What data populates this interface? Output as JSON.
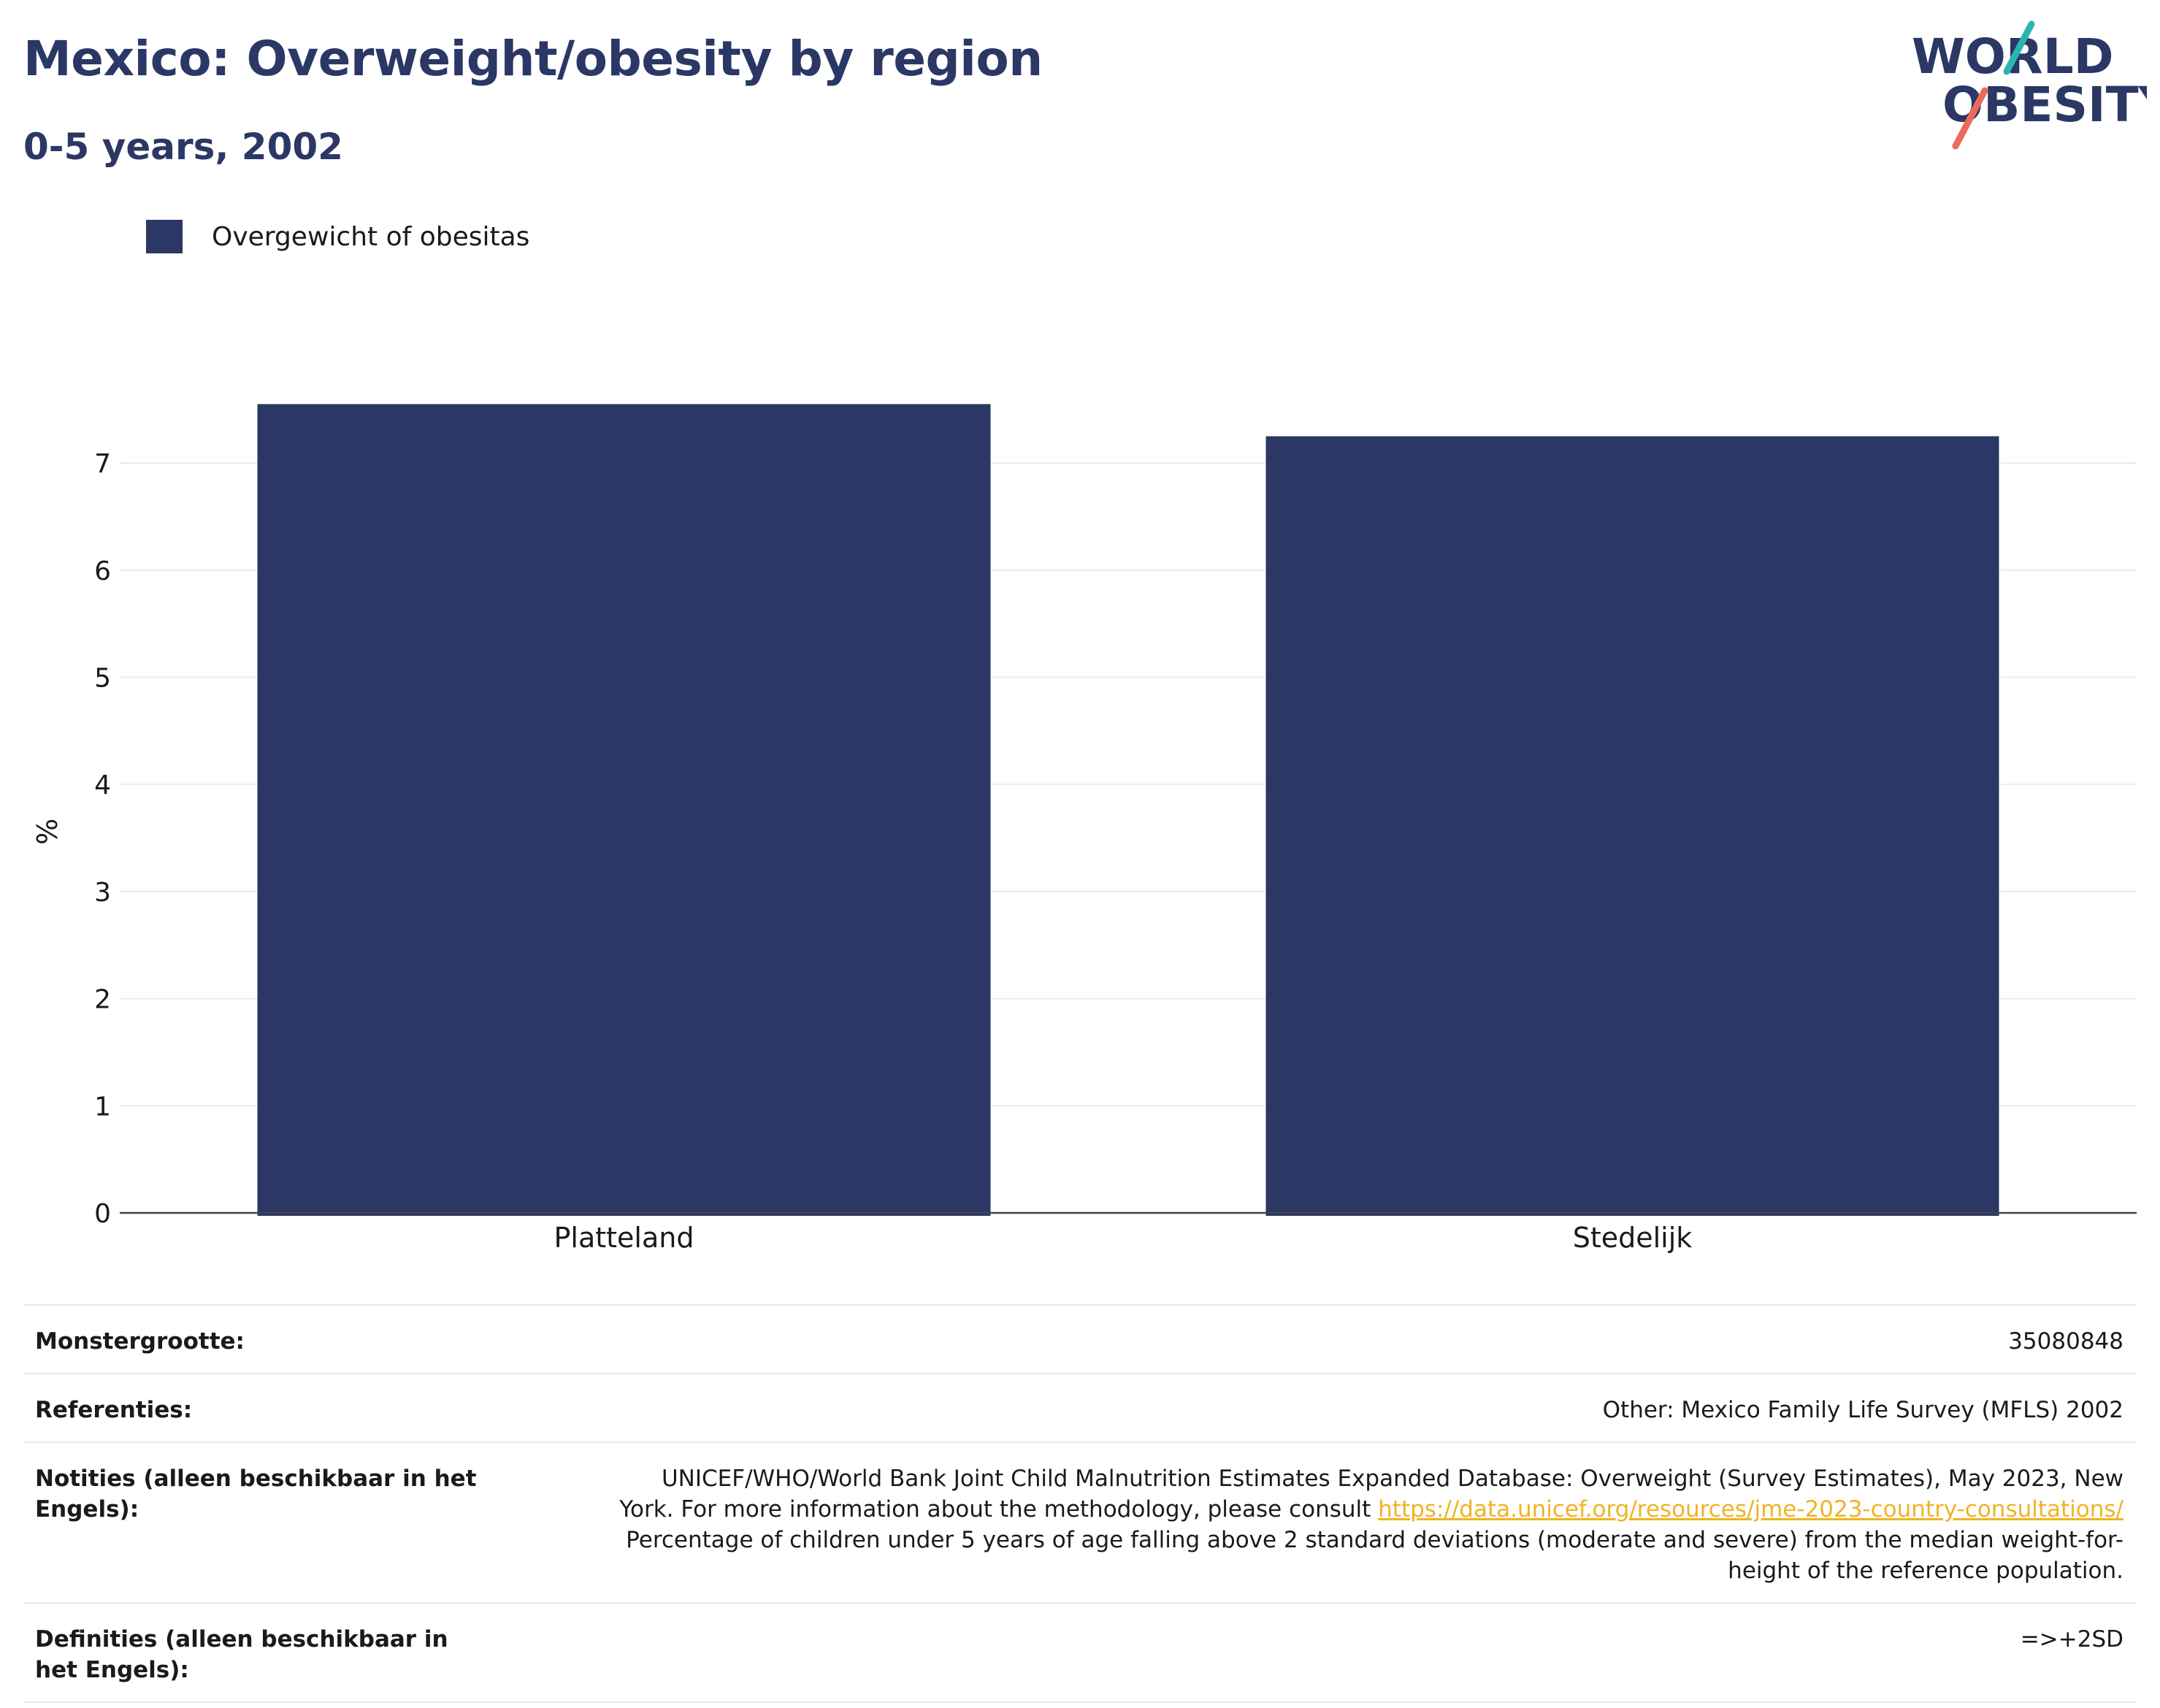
{
  "header": {
    "title": "Mexico: Overweight/obesity by region",
    "subtitle": "0-5 years, 2002"
  },
  "logo": {
    "line1": "WORLD",
    "line2": "OBESITY",
    "accent_teal": "#2bb5b0",
    "accent_coral": "#ea6b5a",
    "text_color": "#2b3765"
  },
  "legend": {
    "label": "Overgewicht of obesitas",
    "color": "#2b3765"
  },
  "chart_data": {
    "type": "bar",
    "categories": [
      "Platteland",
      "Stedelijk"
    ],
    "series": [
      {
        "name": "Overgewicht of obesitas",
        "values": [
          7.55,
          7.25
        ],
        "color": "#2b3765"
      }
    ],
    "ylabel": "%",
    "ylim": [
      0,
      7.8
    ],
    "yticks": [
      0,
      1,
      2,
      3,
      4,
      5,
      6,
      7
    ],
    "grid": true,
    "legend_position": "top-left"
  },
  "meta": {
    "sample_size_label": "Monstergrootte:",
    "sample_size_value": "35080848",
    "references_label": "Referenties:",
    "references_value": "Other: Mexico Family Life Survey (MFLS) 2002",
    "notes_label": "Notities (alleen beschikbaar in het Engels):",
    "notes_text_1": "UNICEF/WHO/World Bank Joint Child Malnutrition Estimates Expanded Database: Overweight (Survey Estimates), May 2023, New York. For more information about the methodology, please consult",
    "notes_link": "https://data.unicef.org/resources/jme-2023-country-consultations/",
    "notes_text_2": "Percentage of children under 5 years of age falling above 2 standard deviations (moderate and severe) from the median weight-for-height of the reference population.",
    "definitions_label": "Definities (alleen beschikbaar in het Engels):",
    "definitions_value": "=>+2SD"
  }
}
